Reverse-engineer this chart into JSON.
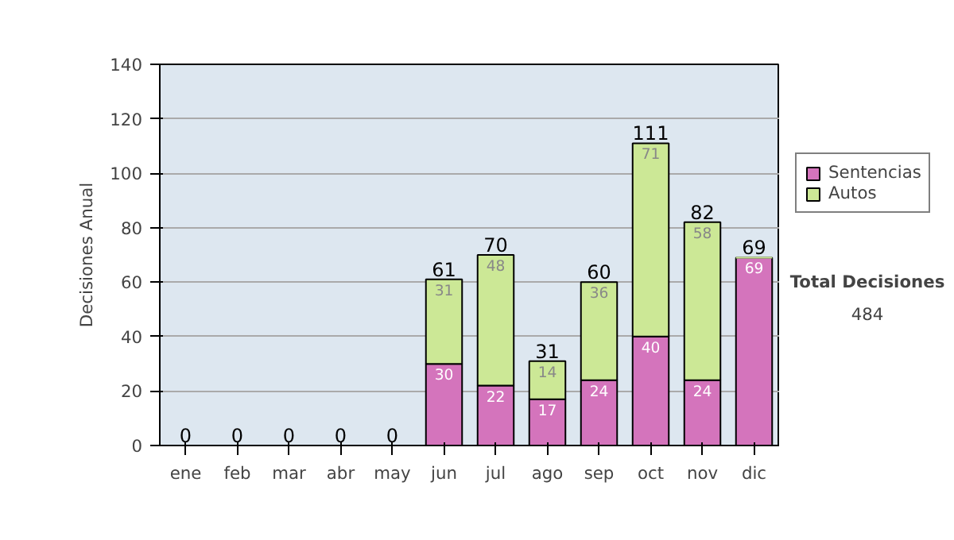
{
  "chart_data": {
    "type": "bar",
    "stacked": true,
    "ylabel": "Decisiones Anual",
    "categories": [
      "ene",
      "feb",
      "mar",
      "abr",
      "may",
      "jun",
      "jul",
      "ago",
      "sep",
      "oct",
      "nov",
      "dic"
    ],
    "series": [
      {
        "name": "Sentencias",
        "color": "#d474bc",
        "values": [
          0,
          0,
          0,
          0,
          0,
          30,
          22,
          17,
          24,
          40,
          24,
          69
        ],
        "value_labels": [
          null,
          null,
          null,
          null,
          null,
          "30",
          "22",
          "17",
          "24",
          "40",
          "24",
          "69"
        ]
      },
      {
        "name": "Autos",
        "color": "#cce896",
        "values": [
          0,
          0,
          0,
          0,
          0,
          31,
          48,
          14,
          36,
          71,
          58,
          0
        ],
        "value_labels": [
          null,
          null,
          null,
          null,
          null,
          "31",
          "48",
          "14",
          "36",
          "71",
          "58",
          null
        ]
      }
    ],
    "totals": [
      "0",
      "0",
      "0",
      "0",
      "0",
      "61",
      "70",
      "31",
      "60",
      "111",
      "82",
      "69"
    ],
    "ylim": [
      0,
      140
    ],
    "yticks": [
      0,
      20,
      40,
      60,
      80,
      100,
      120,
      140
    ],
    "grid": "y",
    "legend": "right",
    "annotations": [
      "Total Decisiones",
      "484"
    ]
  }
}
